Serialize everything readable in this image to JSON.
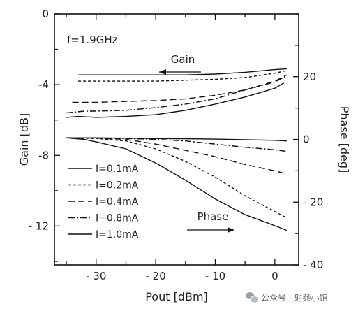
{
  "chart_data": {
    "type": "line",
    "annotation_freq": "f=1.9GHz",
    "annotation_gain": "Gain",
    "annotation_phase": "Phase",
    "xlabel": "Pout [dBm]",
    "ylabel_left": "Gain [dB]",
    "ylabel_right": "Phase [deg]",
    "xlim": [
      -37,
      4
    ],
    "ylim_left": [
      0,
      -14.2
    ],
    "ylim_right": [
      40,
      -40
    ],
    "xticks": [
      -30,
      -20,
      -10,
      0
    ],
    "xtick_labels": [
      "- 30",
      "- 20",
      "- 10",
      "0"
    ],
    "yticks_left": [
      0,
      -4,
      -8,
      -12
    ],
    "ytick_labels_left": [
      "0",
      "-4",
      "-8",
      "- 12"
    ],
    "yticks_right": [
      20,
      0,
      -20,
      -40
    ],
    "ytick_labels_right": [
      "20",
      "0",
      "- 20",
      "- 40"
    ],
    "legend_placement": "bottom-left",
    "series": [
      {
        "name": "I=0.1mA",
        "dash": "none",
        "gain": {
          "x": [
            -33,
            -30,
            -25,
            -20,
            -15,
            -10,
            -5,
            0,
            2
          ],
          "y": [
            -3.45,
            -3.45,
            -3.45,
            -3.45,
            -3.45,
            -3.4,
            -3.3,
            -3.15,
            -3.1
          ]
        },
        "phase": {
          "x": [
            -35,
            -30,
            -25,
            -20,
            -15,
            -10,
            -5,
            0,
            2
          ],
          "y": [
            0.5,
            0.5,
            0.4,
            0.3,
            0.2,
            0.1,
            -0.1,
            -0.3,
            -0.5
          ]
        }
      },
      {
        "name": "I=0.2mA",
        "dash": "4,3",
        "gain": {
          "x": [
            -33,
            -30,
            -25,
            -20,
            -15,
            -10,
            -5,
            0,
            2
          ],
          "y": [
            -3.8,
            -3.8,
            -3.8,
            -3.8,
            -3.75,
            -3.7,
            -3.6,
            -3.35,
            -3.2
          ]
        },
        "phase": {
          "x": [
            -35,
            -30,
            -25,
            -20,
            -15,
            -10,
            -5,
            0,
            2
          ],
          "y": [
            0.5,
            0.3,
            -0.5,
            -3,
            -7,
            -12,
            -18,
            -23,
            -25
          ]
        }
      },
      {
        "name": "I=0.4mA",
        "dash": "9,5",
        "gain": {
          "x": [
            -34,
            -30,
            -25,
            -20,
            -15,
            -10,
            -5,
            0,
            2
          ],
          "y": [
            -5.0,
            -5.0,
            -4.95,
            -4.9,
            -4.8,
            -4.6,
            -4.3,
            -3.8,
            -3.45
          ]
        },
        "phase": {
          "x": [
            -35,
            -30,
            -25,
            -20,
            -15,
            -10,
            -5,
            0,
            2
          ],
          "y": [
            0.5,
            0.4,
            0,
            -1.5,
            -3.5,
            -5.5,
            -8,
            -10,
            -11
          ]
        }
      },
      {
        "name": "I=0.8mA",
        "dash": "9,3,2,3",
        "gain": {
          "x": [
            -35,
            -32,
            -30,
            -25,
            -20,
            -15,
            -10,
            -5,
            0,
            2
          ],
          "y": [
            -5.6,
            -5.5,
            -5.5,
            -5.45,
            -5.3,
            -5.1,
            -4.8,
            -4.3,
            -3.85,
            -3.5
          ]
        },
        "phase": {
          "x": [
            -35,
            -30,
            -25,
            -20,
            -15,
            -10,
            -5,
            0,
            2
          ],
          "y": [
            0.5,
            0.5,
            0.3,
            0,
            -0.5,
            -1.5,
            -2.5,
            -3.3,
            -3.8
          ]
        }
      },
      {
        "name": "I=1.0mA",
        "dash": "none",
        "gain": {
          "x": [
            -35,
            -33,
            -30,
            -25,
            -20,
            -15,
            -10,
            -5,
            0,
            1.5
          ],
          "y": [
            -5.85,
            -5.8,
            -5.85,
            -5.8,
            -5.7,
            -5.45,
            -5.1,
            -4.7,
            -4.2,
            -3.9
          ]
        },
        "phase": {
          "x": [
            -35,
            -32,
            -30,
            -25,
            -20,
            -15,
            -10,
            -5,
            0,
            2
          ],
          "y": [
            0.5,
            0,
            -0.8,
            -3,
            -7.5,
            -13,
            -19,
            -24,
            -27.5,
            -29
          ]
        }
      }
    ]
  },
  "watermark": {
    "text": "公众号 · 射频小馆",
    "icon": "wechat-icon"
  }
}
